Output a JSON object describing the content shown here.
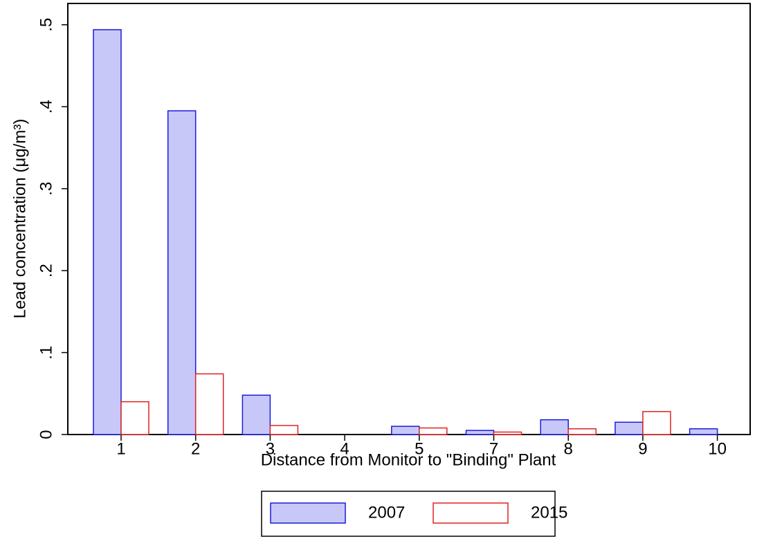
{
  "chart_data": {
    "type": "bar",
    "y_label": "Lead concentration (μg/m³)",
    "x_label": "Distance from Monitor to \"Binding\" Plant",
    "categories": [
      "1",
      "2",
      "3",
      "4",
      "5",
      "7",
      "8",
      "9",
      "10"
    ],
    "series": [
      {
        "name": "2007",
        "color": "#c8c8f8",
        "edge": "#1a1adc",
        "values": [
          0.494,
          0.395,
          0.048,
          null,
          0.01,
          0.005,
          0.018,
          0.015,
          0.007
        ]
      },
      {
        "name": "2015",
        "color": "#ffffff",
        "edge": "#e02020",
        "values": [
          0.04,
          0.074,
          0.011,
          null,
          0.008,
          0.003,
          0.007,
          0.028,
          null
        ]
      }
    ],
    "ylim": [
      0,
      0.526
    ],
    "yticks": [
      0,
      {
        "value": 0.1,
        "label": ".1"
      },
      {
        "value": 0.2,
        "label": ".2"
      },
      {
        "value": 0.3,
        "label": ".3"
      },
      {
        "value": 0.4,
        "label": ".4"
      },
      {
        "value": 0.5,
        "label": ".5"
      }
    ],
    "grid": false
  }
}
